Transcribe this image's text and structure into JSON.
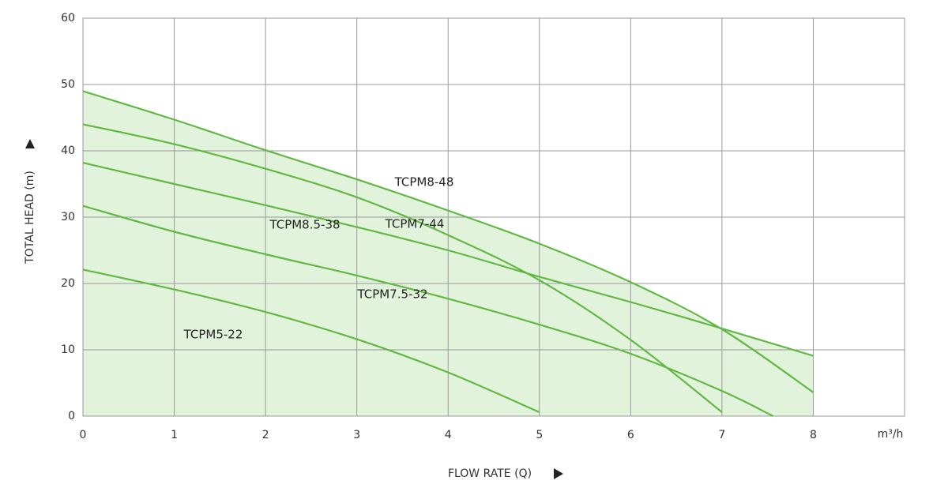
{
  "chart_data": {
    "type": "line",
    "x_label": "FLOW RATE (Q)",
    "y_label": "TOTAL HEAD (m)",
    "x_unit": "m³/h",
    "xlim": [
      0,
      9
    ],
    "xticks": [
      0,
      1,
      2,
      3,
      4,
      5,
      6,
      7,
      8
    ],
    "ylim": [
      0,
      60
    ],
    "yticks": [
      0,
      10,
      20,
      30,
      40,
      50,
      60
    ],
    "grid": true,
    "fill_color": "#e2f3dc",
    "series": [
      {
        "name": "TCPM8-48",
        "color": "#62b844",
        "x": [
          0,
          1,
          2,
          3,
          4,
          5,
          6,
          7,
          8
        ],
        "values": [
          49,
          44.7,
          40.1,
          35.7,
          31.0,
          26.0,
          20.2,
          13.1,
          3.6
        ]
      },
      {
        "name": "TCPM7-44",
        "color": "#62b844",
        "x": [
          0,
          1,
          2,
          3,
          4,
          5,
          6,
          7
        ],
        "values": [
          44,
          41,
          37.3,
          33,
          27.3,
          20.5,
          11.5,
          0.6
        ]
      },
      {
        "name": "TCPM8.5-38",
        "color": "#62b844",
        "x": [
          0,
          1,
          2,
          3,
          4,
          5,
          6,
          7,
          8
        ],
        "values": [
          38.2,
          35.0,
          31.8,
          28.5,
          25.0,
          21.0,
          17.2,
          13.2,
          9.1
        ]
      },
      {
        "name": "TCPM7.5-32",
        "color": "#62b844",
        "x": [
          0,
          1,
          2,
          3,
          4,
          5,
          6,
          7,
          7.56
        ],
        "values": [
          31.7,
          27.8,
          24.4,
          21.2,
          17.7,
          13.8,
          9.4,
          3.8,
          0
        ]
      },
      {
        "name": "TCPM5-22",
        "color": "#62b844",
        "x": [
          0,
          1,
          2,
          3,
          4,
          5
        ],
        "values": [
          22.1,
          19.1,
          15.7,
          11.6,
          6.6,
          0.6
        ]
      }
    ]
  }
}
